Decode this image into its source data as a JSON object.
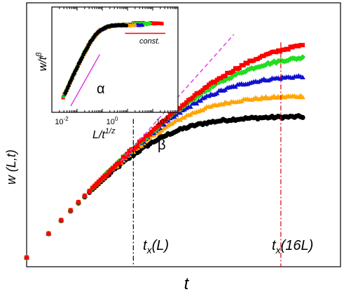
{
  "chart_data": {
    "type": "scatter",
    "title": "",
    "xlabel": "t",
    "ylabel": "w (L,t)",
    "xscale": "log",
    "yscale": "log",
    "grid": false,
    "legend": "none",
    "annotations": {
      "beta": "β",
      "tx_small": "t",
      "tx_small_sub": "x",
      "tx_small_arg": "(L)",
      "tx_large": "t",
      "tx_large_sub": "x",
      "tx_large_arg": "(16L)"
    },
    "colors": {
      "black": "#000000",
      "orange": "#ffa500",
      "blue": "#1010d0",
      "green": "#22dd22",
      "red": "#ff0000",
      "beta_line": "#e040e0",
      "tx_small_line": "#000000",
      "tx_large_line": "#dd0000"
    },
    "series": [
      {
        "color": "black",
        "marker": "circle",
        "saturation_w": 0.57,
        "crossover_t": 0.33
      },
      {
        "color": "orange",
        "marker": "triangle",
        "saturation_w": 0.65,
        "crossover_t": 0.5
      },
      {
        "color": "blue",
        "marker": "triangle",
        "saturation_w": 0.73,
        "crossover_t": 0.65
      },
      {
        "color": "green",
        "marker": "diamond",
        "saturation_w": 0.81,
        "crossover_t": 0.8
      },
      {
        "color": "red",
        "marker": "square",
        "saturation_w": 0.87,
        "crossover_t": 0.98
      }
    ],
    "x_range": [
      0,
      1
    ],
    "y_range": [
      0,
      1
    ],
    "tx_small_x": 0.34,
    "tx_large_x": 0.81,
    "beta_line": {
      "x": [
        0.3,
        0.66
      ],
      "y": [
        0.4,
        0.88
      ]
    },
    "inset": {
      "xlabel": "L/t",
      "xlabel_sup": "1/z",
      "ylabel": "w/t",
      "ylabel_sup": "β",
      "x_ticks": [
        {
          "base": "10",
          "exp": "-2"
        },
        {
          "base": "10",
          "exp": "0"
        },
        {
          "base": "10",
          "exp": "2"
        }
      ],
      "alpha_label": "α",
      "const_label": "const.",
      "x_range_log10": [
        -2,
        3
      ],
      "collapse_knee_log10_x": 0.1,
      "plateau_y": 0.83
    }
  }
}
